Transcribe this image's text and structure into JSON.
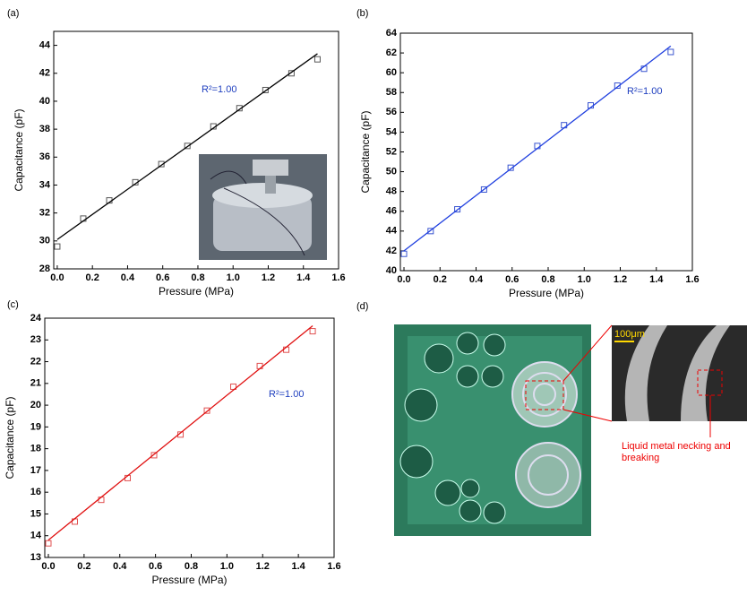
{
  "chart_data": [
    {
      "type": "scatter",
      "panel": "(a)",
      "xlabel": "Pressure (MPa)",
      "ylabel": "Capacitance (pF)",
      "annotation": "R²=1.00",
      "annotation_color": "#1f3fbf",
      "xlim": [
        -0.02,
        1.6
      ],
      "xticks": [
        {
          "value": 0,
          "label": "0.0"
        },
        0.2,
        0.4,
        0.6,
        0.8,
        {
          "value": 1,
          "label": "1.0"
        },
        1.2,
        1.4,
        1.6
      ],
      "ylim": [
        28,
        45
      ],
      "yticks": [
        28,
        30,
        32,
        34,
        36,
        38,
        40,
        42,
        44
      ],
      "series": [
        {
          "color": "#555555",
          "x": [
            0,
            0.148,
            0.296,
            0.444,
            0.592,
            0.74,
            0.888,
            1.036,
            1.184,
            1.332,
            1.48
          ],
          "values": [
            29.6,
            31.6,
            32.9,
            34.2,
            35.5,
            36.8,
            38.2,
            39.5,
            40.8,
            42.0,
            43.0
          ]
        },
        {
          "type": "line",
          "color": "#000000",
          "x": [
            0,
            1.48
          ],
          "values": [
            30.1,
            43.4
          ]
        }
      ]
    },
    {
      "type": "scatter",
      "panel": "(b)",
      "xlabel": "Pressure (MPa)",
      "ylabel": "Capacitance (pF)",
      "annotation": "R²=1.00",
      "annotation_color": "#1f3fbf",
      "xlim": [
        -0.02,
        1.6
      ],
      "xticks": [
        {
          "value": 0,
          "label": "0.0"
        },
        0.2,
        0.4,
        0.6,
        0.8,
        {
          "value": 1,
          "label": "1.0"
        },
        1.2,
        1.4,
        1.6
      ],
      "ylim": [
        40,
        64
      ],
      "yticks": [
        40,
        42,
        44,
        46,
        48,
        50,
        52,
        54,
        56,
        58,
        60,
        62,
        64
      ],
      "series": [
        {
          "color": "#3a55d0",
          "x": [
            0,
            0.148,
            0.296,
            0.444,
            0.592,
            0.74,
            0.888,
            1.036,
            1.184,
            1.332,
            1.48
          ],
          "values": [
            41.7,
            44.0,
            46.2,
            48.2,
            50.4,
            52.6,
            54.7,
            56.7,
            58.7,
            60.4,
            62.1
          ]
        },
        {
          "type": "line",
          "color": "#1f3fdf",
          "x": [
            0,
            1.48
          ],
          "values": [
            42.0,
            62.7
          ]
        }
      ]
    },
    {
      "type": "scatter",
      "panel": "(c)",
      "xlabel": "Pressure (MPa)",
      "ylabel": "Capacitance (pF)",
      "annotation": "R²=1.00",
      "annotation_color": "#1f3fbf",
      "xlim": [
        -0.02,
        1.6
      ],
      "xticks": [
        {
          "value": 0,
          "label": "0.0"
        },
        0.2,
        0.4,
        0.6,
        0.8,
        {
          "value": 1,
          "label": "1.0"
        },
        1.2,
        1.4,
        1.6
      ],
      "ylim": [
        13,
        24
      ],
      "yticks": [
        13,
        14,
        15,
        16,
        17,
        18,
        19,
        20,
        21,
        22,
        23,
        24
      ],
      "series": [
        {
          "color": "#e05050",
          "x": [
            0,
            0.148,
            0.296,
            0.444,
            0.592,
            0.74,
            0.888,
            1.036,
            1.184,
            1.332,
            1.48
          ],
          "values": [
            13.65,
            14.65,
            15.65,
            16.65,
            17.7,
            18.65,
            19.75,
            20.85,
            21.8,
            22.55,
            23.4
          ]
        },
        {
          "type": "line",
          "color": "#e01010",
          "x": [
            0,
            1.48
          ],
          "values": [
            13.8,
            23.65
          ]
        }
      ]
    }
  ],
  "photo_panel": {
    "label": "(d)",
    "scale_bar": "100μm",
    "caption_line1": "Liquid metal necking and",
    "caption_line2": "breaking"
  }
}
